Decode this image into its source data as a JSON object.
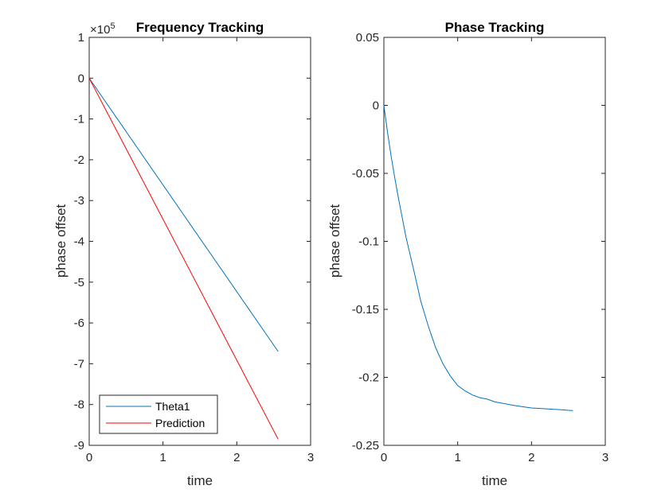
{
  "chart_data": [
    {
      "type": "line",
      "title": "Frequency Tracking",
      "xlabel": "time",
      "ylabel": "phase offset",
      "xlim": [
        0,
        3
      ],
      "ylim": [
        -9,
        1
      ],
      "y_exponent_label": "×10",
      "y_exponent_power": "5",
      "x_ticks": [
        0,
        1,
        2,
        3
      ],
      "x_tick_labels": [
        "0",
        "1",
        "2",
        "3"
      ],
      "y_ticks": [
        1,
        0,
        -1,
        -2,
        -3,
        -4,
        -5,
        -6,
        -7,
        -8,
        -9
      ],
      "y_tick_labels": [
        "1",
        "0",
        "-1",
        "-2",
        "-3",
        "-4",
        "-5",
        "-6",
        "-7",
        "-8",
        "-9"
      ],
      "grid": false,
      "legend_position": "bottom-left",
      "series": [
        {
          "name": "Theta1",
          "color": "#0072BD",
          "x": [
            0,
            2.56
          ],
          "y": [
            0,
            -6.7
          ]
        },
        {
          "name": "Prediction",
          "color": "#FF0000",
          "x": [
            0,
            2.56
          ],
          "y": [
            0,
            -8.85
          ]
        }
      ]
    },
    {
      "type": "line",
      "title": "Phase Tracking",
      "xlabel": "time",
      "ylabel": "phase offset",
      "xlim": [
        0,
        3
      ],
      "ylim": [
        -0.25,
        0.05
      ],
      "x_ticks": [
        0,
        1,
        2,
        3
      ],
      "x_tick_labels": [
        "0",
        "1",
        "2",
        "3"
      ],
      "y_ticks": [
        0.05,
        0,
        -0.05,
        -0.1,
        -0.15,
        -0.2,
        -0.25
      ],
      "y_tick_labels": [
        "0.05",
        "0",
        "-0.05",
        "-0.1",
        "-0.15",
        "-0.2",
        "-0.25"
      ],
      "grid": false,
      "series": [
        {
          "color": "#0072BD",
          "x": [
            0,
            0.05,
            0.1,
            0.15,
            0.2,
            0.25,
            0.3,
            0.4,
            0.5,
            0.6,
            0.7,
            0.8,
            0.9,
            1.0,
            1.1,
            1.2,
            1.3,
            1.4,
            1.5,
            1.6,
            1.7,
            1.8,
            2.0,
            2.2,
            2.4,
            2.56
          ],
          "y": [
            0,
            -0.02,
            -0.038,
            -0.054,
            -0.069,
            -0.083,
            -0.097,
            -0.12,
            -0.144,
            -0.162,
            -0.178,
            -0.19,
            -0.199,
            -0.206,
            -0.21,
            -0.213,
            -0.215,
            -0.216,
            -0.218,
            -0.219,
            -0.22,
            -0.221,
            -0.2225,
            -0.2232,
            -0.2238,
            -0.2245
          ]
        }
      ]
    }
  ]
}
